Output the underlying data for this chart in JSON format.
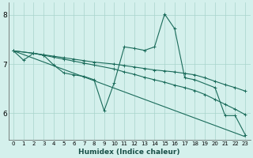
{
  "xlabel": "Humidex (Indice chaleur)",
  "bg_color": "#d4f0ec",
  "grid_color": "#a8d4cc",
  "line_color": "#1a6b5a",
  "xlim": [
    -0.5,
    23.5
  ],
  "ylim": [
    5.45,
    8.25
  ],
  "yticks": [
    6,
    7,
    8
  ],
  "xticks": [
    0,
    1,
    2,
    3,
    4,
    5,
    6,
    7,
    8,
    9,
    10,
    11,
    12,
    13,
    14,
    15,
    16,
    17,
    18,
    19,
    20,
    21,
    22,
    23
  ],
  "curves": [
    {
      "x": [
        0,
        2,
        3,
        4,
        5,
        6,
        7,
        8,
        10,
        11,
        12,
        13,
        14,
        15,
        16,
        17,
        18,
        19,
        20,
        21,
        22,
        23
      ],
      "y": [
        7.27,
        7.22,
        7.19,
        7.16,
        7.13,
        7.1,
        7.07,
        7.04,
        7.0,
        6.97,
        6.94,
        6.91,
        6.88,
        6.86,
        6.84,
        6.81,
        6.78,
        6.72,
        6.65,
        6.58,
        6.52,
        6.45
      ]
    },
    {
      "x": [
        0,
        2,
        3,
        4,
        5,
        6,
        7,
        8,
        10,
        11,
        12,
        13,
        14,
        15,
        16,
        17,
        18,
        19,
        20,
        21,
        22,
        23
      ],
      "y": [
        7.27,
        7.22,
        7.18,
        7.14,
        7.1,
        7.06,
        7.02,
        6.98,
        6.9,
        6.84,
        6.79,
        6.73,
        6.68,
        6.63,
        6.57,
        6.52,
        6.46,
        6.38,
        6.28,
        6.18,
        6.08,
        5.97
      ]
    },
    {
      "x": [
        0,
        1,
        2,
        3,
        4,
        5,
        6,
        7,
        8,
        9,
        10,
        11,
        12,
        13,
        14,
        15,
        16,
        17,
        18,
        20,
        21,
        22,
        23
      ],
      "y": [
        7.27,
        7.08,
        7.22,
        7.18,
        6.98,
        6.82,
        6.78,
        6.75,
        6.68,
        6.05,
        6.62,
        7.35,
        7.32,
        7.28,
        7.35,
        8.02,
        7.72,
        6.72,
        6.68,
        6.52,
        5.95,
        5.95,
        5.56
      ]
    },
    {
      "x": [
        0,
        23
      ],
      "y": [
        7.27,
        5.52
      ]
    }
  ]
}
